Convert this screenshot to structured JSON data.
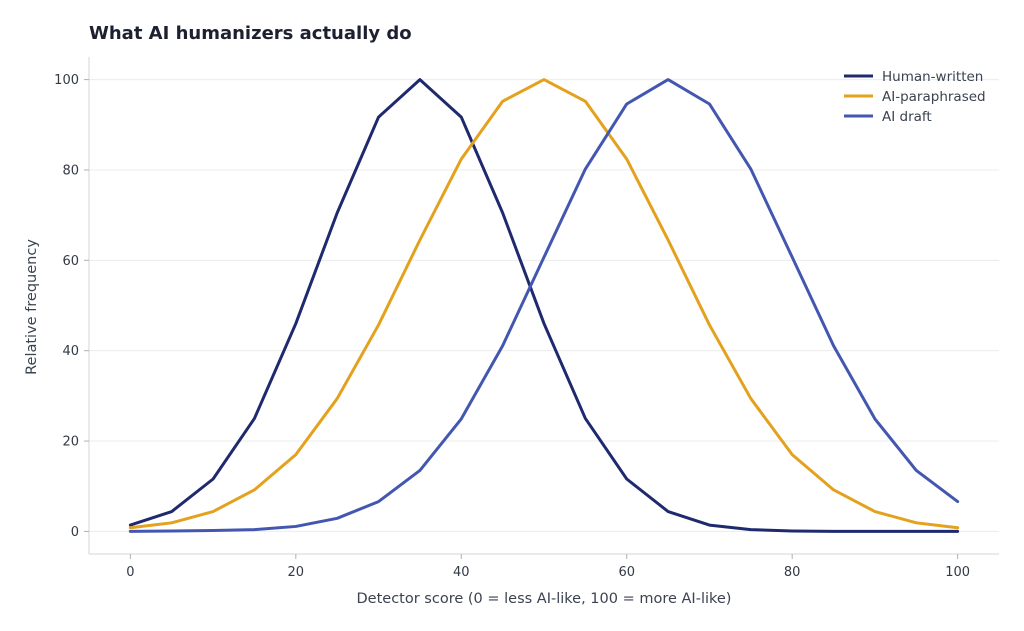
{
  "chart_data": {
    "type": "line",
    "title": "What AI humanizers actually do",
    "xlabel": "Detector score (0 = less AI-like, 100 = more AI-like)",
    "ylabel": "Relative frequency",
    "x": [
      0,
      5,
      10,
      15,
      20,
      25,
      30,
      35,
      40,
      45,
      50,
      55,
      60,
      65,
      70,
      75,
      80,
      85,
      90,
      95,
      100
    ],
    "xlim": [
      -5,
      105
    ],
    "ylim": [
      -5,
      105
    ],
    "xticks": [
      0,
      20,
      40,
      60,
      80,
      100
    ],
    "yticks": [
      0,
      20,
      40,
      60,
      80,
      100
    ],
    "grid": "horizontal",
    "legend_position": "top-right",
    "series": [
      {
        "name": "Human-written",
        "color": "#1f2a6e",
        "values": [
          1.4,
          4.4,
          11.6,
          25,
          46,
          70.5,
          91.7,
          100,
          91.7,
          70.5,
          46,
          25,
          11.6,
          4.4,
          1.4,
          0.4,
          0.1,
          0,
          0,
          0,
          0
        ]
      },
      {
        "name": "AI-paraphrased",
        "color": "#e3a11e",
        "values": [
          0.8,
          1.9,
          4.4,
          9.2,
          17,
          29.4,
          45.7,
          64.5,
          82.4,
          95.2,
          100,
          95.2,
          82.4,
          64.5,
          45.7,
          29.4,
          17,
          9.2,
          4.4,
          1.9,
          0.8
        ]
      },
      {
        "name": "AI draft",
        "color": "#4457b0",
        "values": [
          0,
          0.1,
          0.2,
          0.4,
          1.1,
          2.9,
          6.6,
          13.5,
          24.9,
          41.1,
          60.7,
          80.2,
          94.6,
          100,
          94.6,
          80.2,
          60.7,
          41.1,
          24.9,
          13.5,
          6.6
        ]
      }
    ]
  }
}
